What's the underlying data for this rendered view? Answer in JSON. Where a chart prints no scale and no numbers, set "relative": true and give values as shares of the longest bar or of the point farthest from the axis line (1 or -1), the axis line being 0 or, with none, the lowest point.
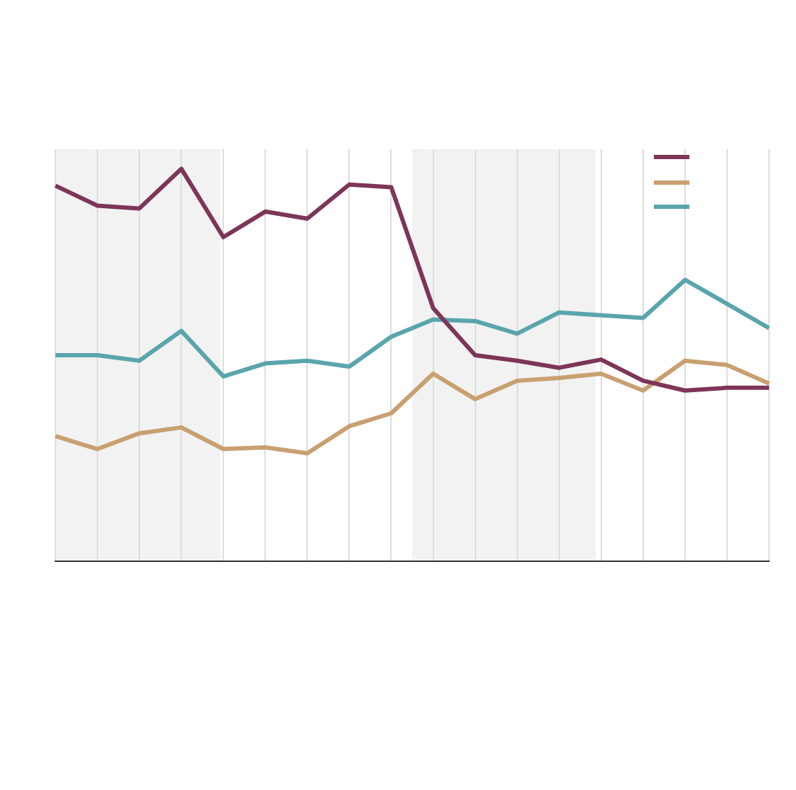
{
  "chart_data": {
    "type": "line",
    "relative": true,
    "categories": [
      null,
      null,
      null,
      null,
      null,
      null,
      null,
      null,
      null,
      null,
      null,
      null,
      null,
      null,
      null,
      null,
      null,
      null
    ],
    "series": [
      {
        "color": "#7d3558",
        "values": [
          0.957,
          0.906,
          0.899,
          1,
          0.826,
          0.891,
          0.873,
          0.96,
          0.953,
          0.645,
          0.525,
          0.511,
          0.493,
          0.514,
          0.46,
          0.435,
          0.442,
          0.442
        ]
      },
      {
        "color": "#c8a070",
        "values": [
          0.319,
          0.286,
          0.326,
          0.341,
          0.286,
          0.29,
          0.275,
          0.344,
          0.377,
          0.478,
          0.413,
          0.46,
          0.467,
          0.478,
          0.435,
          0.511,
          0.5,
          0.453
        ]
      },
      {
        "color": "#5aa5ac",
        "values": [
          0.525,
          0.525,
          0.511,
          0.587,
          0.471,
          0.504,
          0.511,
          0.496,
          0.572,
          0.616,
          0.612,
          0.58,
          0.634,
          0.627,
          0.62,
          0.717,
          0.656,
          0.594
        ]
      }
    ],
    "grid": "x",
    "marker": "none",
    "line_style": "solid"
  }
}
